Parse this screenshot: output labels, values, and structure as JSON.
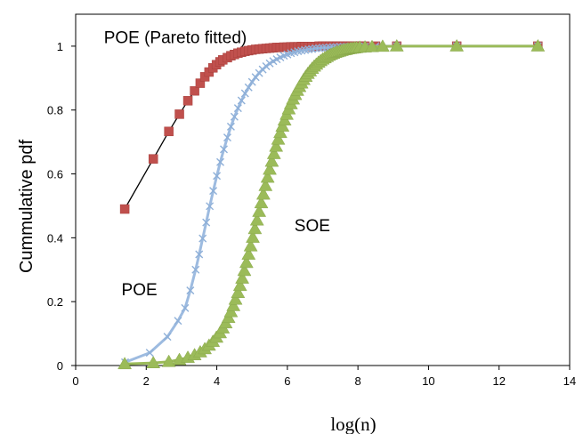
{
  "chart_data": {
    "type": "scatter",
    "title": "",
    "xlabel": "log(n)",
    "ylabel": "Cummulative pdf",
    "xlim": [
      0,
      14
    ],
    "ylim": [
      0,
      1.1
    ],
    "x_ticks": [
      "0",
      "2",
      "4",
      "6",
      "8",
      "10",
      "12",
      "14"
    ],
    "y_ticks": [
      "0",
      "0.2",
      "0.4",
      "0.6",
      "0.8",
      "1"
    ],
    "grid": false,
    "legend": "none",
    "annotations": [
      {
        "text": "POE (Pareto fitted)",
        "x": 0.8,
        "y": 1.01
      },
      {
        "text": "POE",
        "x": 1.3,
        "y": 0.22
      },
      {
        "text": "SOE",
        "x": 6.2,
        "y": 0.42
      }
    ],
    "series": [
      {
        "name": "POE (Pareto fitted)",
        "marker": "square",
        "color": "#c0504d",
        "line_color": "#000000",
        "x": [
          1.39,
          2.2,
          2.64,
          2.94,
          3.18,
          3.37,
          3.53,
          3.66,
          3.78,
          3.89,
          3.99,
          4.09,
          4.17,
          4.3,
          4.4,
          4.5,
          4.6,
          4.7,
          4.8,
          4.9,
          5.0,
          5.1,
          5.2,
          5.3,
          5.4,
          5.5,
          5.6,
          5.7,
          5.8,
          5.9,
          6.0,
          6.1,
          6.2,
          6.3,
          6.4,
          6.5,
          6.6,
          6.7,
          6.8,
          6.9,
          7.0,
          7.1,
          7.2,
          7.3,
          7.4,
          7.5,
          7.6,
          7.7,
          7.8,
          7.9,
          8.0,
          8.1,
          8.2,
          8.5,
          9.1,
          10.8,
          13.1
        ],
        "y": [
          0.49,
          0.647,
          0.733,
          0.787,
          0.829,
          0.86,
          0.884,
          0.904,
          0.919,
          0.932,
          0.942,
          0.951,
          0.957,
          0.964,
          0.97,
          0.974,
          0.978,
          0.981,
          0.984,
          0.986,
          0.988,
          0.99,
          0.991,
          0.992,
          0.993,
          0.994,
          0.995,
          0.996,
          0.996,
          0.997,
          0.997,
          0.998,
          0.998,
          0.998,
          0.999,
          0.999,
          0.999,
          0.999,
          0.999,
          1.0,
          1.0,
          1.0,
          1.0,
          1.0,
          1.0,
          1.0,
          1.0,
          1.0,
          1.0,
          1.0,
          1.0,
          1.0,
          1.0,
          1.0,
          1.0,
          1.0,
          1.0
        ]
      },
      {
        "name": "POE",
        "marker": "x",
        "color": "#8fb0d8",
        "line_color": "#9dbbe0",
        "x": [
          1.4,
          2.1,
          2.6,
          2.9,
          3.1,
          3.25,
          3.4,
          3.5,
          3.6,
          3.7,
          3.8,
          3.9,
          4.0,
          4.1,
          4.2,
          4.3,
          4.4,
          4.5,
          4.6,
          4.7,
          4.8,
          4.9,
          5.0,
          5.1,
          5.2,
          5.3,
          5.4,
          5.5,
          5.6,
          5.7,
          5.8,
          5.9,
          6.0,
          6.1,
          6.2,
          6.3,
          6.4,
          6.5,
          6.6,
          6.7,
          6.8,
          6.9,
          7.0,
          7.1,
          7.2,
          7.3,
          7.4,
          7.5,
          7.6,
          7.7,
          7.8,
          7.9,
          8.0,
          8.2,
          8.5,
          9.1,
          10.8,
          13.1
        ],
        "y": [
          0.01,
          0.04,
          0.09,
          0.14,
          0.18,
          0.235,
          0.3,
          0.348,
          0.398,
          0.448,
          0.499,
          0.547,
          0.594,
          0.637,
          0.677,
          0.714,
          0.748,
          0.779,
          0.806,
          0.83,
          0.852,
          0.871,
          0.888,
          0.903,
          0.916,
          0.927,
          0.937,
          0.946,
          0.953,
          0.959,
          0.965,
          0.97,
          0.974,
          0.978,
          0.981,
          0.984,
          0.986,
          0.988,
          0.99,
          0.991,
          0.993,
          0.994,
          0.995,
          0.995,
          0.996,
          0.997,
          0.997,
          0.998,
          0.998,
          0.998,
          0.999,
          0.999,
          0.999,
          0.999,
          1.0,
          1.0,
          1.0,
          1.0
        ]
      },
      {
        "name": "SOE",
        "marker": "triangle",
        "color": "#9bbb59",
        "line_color": "#9bbb59",
        "x": [
          1.39,
          2.2,
          2.64,
          2.94,
          3.18,
          3.37,
          3.53,
          3.66,
          3.78,
          3.89,
          3.99,
          4.09,
          4.17,
          4.25,
          4.33,
          4.4,
          4.47,
          4.53,
          4.6,
          4.66,
          4.72,
          4.78,
          4.84,
          4.9,
          4.96,
          5.02,
          5.08,
          5.14,
          5.2,
          5.26,
          5.32,
          5.38,
          5.44,
          5.5,
          5.56,
          5.62,
          5.68,
          5.74,
          5.8,
          5.86,
          5.92,
          5.98,
          6.04,
          6.1,
          6.16,
          6.22,
          6.28,
          6.34,
          6.4,
          6.46,
          6.52,
          6.58,
          6.64,
          6.7,
          6.76,
          6.82,
          6.88,
          6.94,
          7.0,
          7.06,
          7.12,
          7.18,
          7.24,
          7.3,
          7.36,
          7.42,
          7.48,
          7.54,
          7.6,
          7.66,
          7.72,
          7.78,
          7.84,
          7.9,
          7.96,
          8.05,
          8.2,
          8.4,
          8.7,
          9.1,
          10.8,
          13.1
        ],
        "y": [
          0.005,
          0.008,
          0.012,
          0.018,
          0.025,
          0.033,
          0.042,
          0.052,
          0.063,
          0.075,
          0.088,
          0.102,
          0.117,
          0.133,
          0.15,
          0.168,
          0.187,
          0.207,
          0.228,
          0.25,
          0.273,
          0.297,
          0.322,
          0.348,
          0.374,
          0.401,
          0.428,
          0.455,
          0.482,
          0.509,
          0.536,
          0.563,
          0.589,
          0.614,
          0.639,
          0.663,
          0.686,
          0.708,
          0.729,
          0.749,
          0.768,
          0.786,
          0.803,
          0.819,
          0.834,
          0.848,
          0.861,
          0.873,
          0.884,
          0.895,
          0.905,
          0.914,
          0.922,
          0.93,
          0.937,
          0.943,
          0.949,
          0.954,
          0.959,
          0.963,
          0.967,
          0.971,
          0.974,
          0.977,
          0.98,
          0.982,
          0.984,
          0.986,
          0.988,
          0.989,
          0.991,
          0.992,
          0.993,
          0.994,
          0.995,
          0.996,
          0.997,
          0.998,
          0.999,
          1.0,
          1.0,
          1.0
        ]
      }
    ]
  }
}
